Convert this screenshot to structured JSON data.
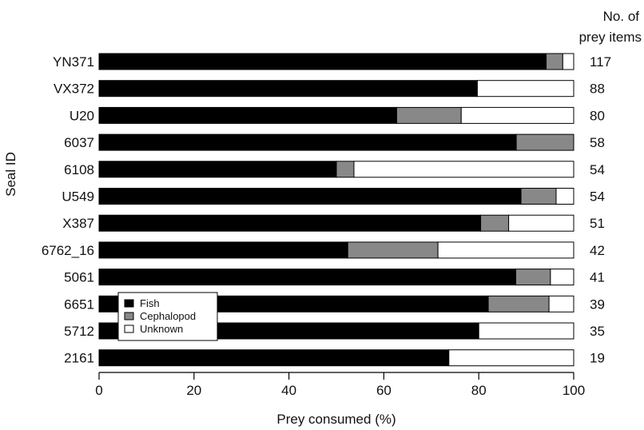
{
  "chart_data": {
    "type": "bar",
    "orientation": "horizontal",
    "stacked": true,
    "xlabel": "Prey consumed (%)",
    "ylabel": "Seal ID",
    "right_header": [
      "No. of",
      "prey items"
    ],
    "xlim": [
      0,
      100
    ],
    "xticks": [
      0,
      20,
      40,
      60,
      80,
      100
    ],
    "grid": false,
    "legend_position": "bottom-left",
    "categories": [
      "YN371",
      "VX372",
      "U20",
      "6037",
      "6108",
      "U549",
      "X387",
      "6762_16",
      "5061",
      "6651",
      "5712",
      "2161"
    ],
    "prey_items": [
      "117",
      "88",
      "80",
      "58",
      "54",
      "54",
      "51",
      "42",
      "41",
      "39",
      "35",
      "19"
    ],
    "series": [
      {
        "name": "Fish",
        "color": "#000000",
        "values": [
          94.2,
          79.7,
          62.7,
          87.9,
          50.0,
          88.9,
          80.4,
          52.4,
          87.8,
          82.0,
          80.0,
          73.7
        ]
      },
      {
        "name": "Cephalopod",
        "color": "#888888",
        "values": [
          3.5,
          0.0,
          13.6,
          12.1,
          3.7,
          7.4,
          5.9,
          19.0,
          7.3,
          12.8,
          0.0,
          0.0
        ]
      },
      {
        "name": "Unknown",
        "color": "#ffffff",
        "values": [
          2.3,
          20.3,
          23.7,
          0.0,
          46.3,
          3.7,
          13.7,
          28.6,
          4.9,
          5.2,
          20.0,
          26.3
        ]
      }
    ]
  }
}
